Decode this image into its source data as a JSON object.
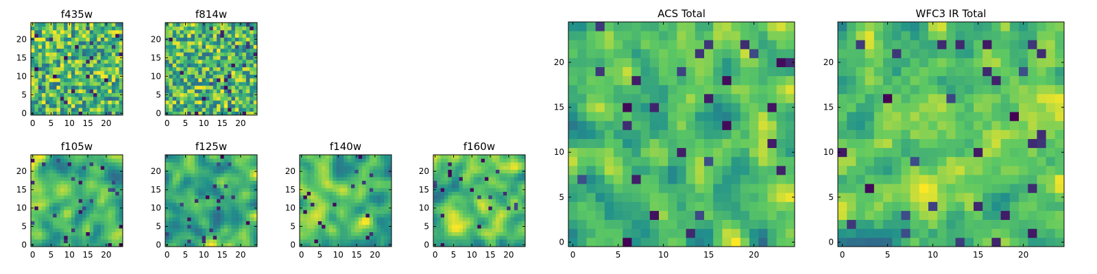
{
  "figure": {
    "colormap": "viridis",
    "colormap_colors": [
      "#440154",
      "#3b528b",
      "#21918c",
      "#5ec962",
      "#fde725"
    ],
    "background": "#ffffff"
  },
  "chart_data": [
    {
      "type": "heatmap",
      "title": "f435w",
      "grid": [
        25,
        25
      ],
      "x_ticks": [
        "0",
        "5",
        "10",
        "15",
        "20"
      ],
      "y_ticks": [
        "0",
        "5",
        "10",
        "15",
        "20"
      ],
      "xlim": [
        -0.5,
        24.5
      ],
      "ylim": [
        -0.5,
        24.5
      ],
      "style": "noisy",
      "seed": 11
    },
    {
      "type": "heatmap",
      "title": "f814w",
      "grid": [
        25,
        25
      ],
      "x_ticks": [
        "0",
        "5",
        "10",
        "15",
        "20"
      ],
      "y_ticks": [
        "0",
        "5",
        "10",
        "15",
        "20"
      ],
      "xlim": [
        -0.5,
        24.5
      ],
      "ylim": [
        -0.5,
        24.5
      ],
      "style": "noisy",
      "seed": 23
    },
    {
      "type": "heatmap",
      "title": "f105w",
      "grid": [
        25,
        25
      ],
      "x_ticks": [
        "0",
        "5",
        "10",
        "15",
        "20"
      ],
      "y_ticks": [
        "0",
        "5",
        "10",
        "15",
        "20"
      ],
      "xlim": [
        -0.5,
        24.5
      ],
      "ylim": [
        -0.5,
        24.5
      ],
      "style": "smooth",
      "seed": 37
    },
    {
      "type": "heatmap",
      "title": "f125w",
      "grid": [
        25,
        25
      ],
      "x_ticks": [
        "0",
        "5",
        "10",
        "15",
        "20"
      ],
      "y_ticks": [
        "0",
        "5",
        "10",
        "15",
        "20"
      ],
      "xlim": [
        -0.5,
        24.5
      ],
      "ylim": [
        -0.5,
        24.5
      ],
      "style": "smooth",
      "seed": 41
    },
    {
      "type": "heatmap",
      "title": "f140w",
      "grid": [
        25,
        25
      ],
      "x_ticks": [
        "0",
        "5",
        "10",
        "15",
        "20"
      ],
      "y_ticks": [
        "0",
        "5",
        "10",
        "15",
        "20"
      ],
      "xlim": [
        -0.5,
        24.5
      ],
      "ylim": [
        -0.5,
        24.5
      ],
      "style": "smooth",
      "seed": 53
    },
    {
      "type": "heatmap",
      "title": "f160w",
      "grid": [
        25,
        25
      ],
      "x_ticks": [
        "0",
        "5",
        "10",
        "15",
        "20"
      ],
      "y_ticks": [
        "0",
        "5",
        "10",
        "15",
        "20"
      ],
      "xlim": [
        -0.5,
        24.5
      ],
      "ylim": [
        -0.5,
        24.5
      ],
      "style": "smooth",
      "seed": 67
    },
    {
      "type": "heatmap",
      "title": "ACS Total",
      "grid": [
        25,
        25
      ],
      "x_ticks": [
        "0",
        "5",
        "10",
        "15",
        "20"
      ],
      "y_ticks": [
        "0",
        "5",
        "10",
        "15",
        "20"
      ],
      "xlim": [
        -0.5,
        24.5
      ],
      "ylim": [
        -0.5,
        24.5
      ],
      "style": "medium",
      "seed": 79
    },
    {
      "type": "heatmap",
      "title": "WFC3 IR Total",
      "grid": [
        25,
        25
      ],
      "x_ticks": [
        "0",
        "5",
        "10",
        "15",
        "20"
      ],
      "y_ticks": [
        "0",
        "5",
        "10",
        "15",
        "20"
      ],
      "xlim": [
        -0.5,
        24.5
      ],
      "ylim": [
        -0.5,
        24.5
      ],
      "style": "medium",
      "seed": 97
    }
  ]
}
